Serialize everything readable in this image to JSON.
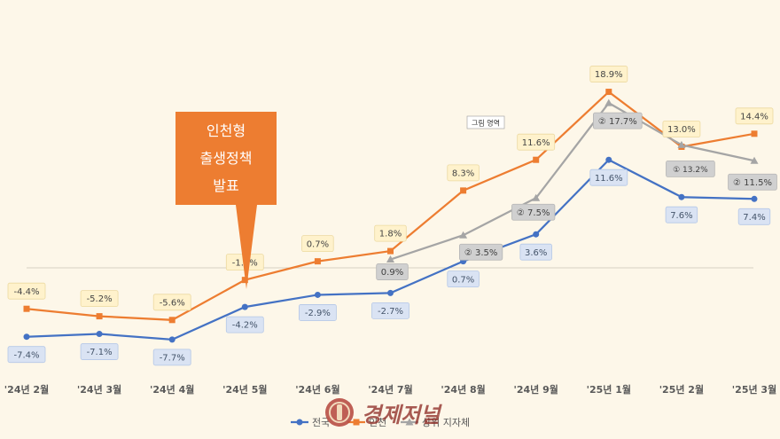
{
  "chart_data": {
    "type": "line",
    "categories": [
      "'24년 2월",
      "'24년 3월",
      "'24년 4월",
      "'24년 5월",
      "'24년 6월",
      "'24년 7월",
      "'24년 8월",
      "'24년 9월",
      "'25년 1월",
      "'25년 2월",
      "'25년 3월"
    ],
    "series": [
      {
        "name": "전국",
        "color": "#4472c4",
        "marker": "circle",
        "values": [
          -7.4,
          -7.1,
          -7.7,
          -4.2,
          -2.9,
          -2.7,
          0.7,
          3.6,
          11.6,
          7.6,
          7.4
        ],
        "labels": [
          "-7.4%",
          "-7.1%",
          "-7.7%",
          "-4.2%",
          "-2.9%",
          "-2.7%",
          "0.7%",
          "3.6%",
          "11.6%",
          "7.6%",
          "7.4%"
        ]
      },
      {
        "name": "인천",
        "color": "#ed7d31",
        "marker": "square",
        "values": [
          -4.4,
          -5.2,
          -5.6,
          -1.3,
          0.7,
          1.8,
          8.3,
          11.6,
          18.9,
          13.0,
          14.4
        ],
        "labels": [
          "-4.4%",
          "-5.2%",
          "-5.6%",
          "-1.3%",
          "0.7%",
          "1.8%",
          "8.3%",
          "11.6%",
          "18.9%",
          "13.0%",
          "14.4%"
        ]
      },
      {
        "name": "상위 지자체",
        "color": "#a5a5a5",
        "marker": "triangle",
        "values": [
          null,
          null,
          null,
          null,
          null,
          0.9,
          3.5,
          7.5,
          17.7,
          13.2,
          11.5
        ],
        "labels": [
          "",
          "",
          "",
          "",
          "",
          "0.9%",
          "② 3.5%",
          "② 7.5%",
          "② 17.7%",
          "① 13.2%",
          "② 11.5%"
        ]
      }
    ],
    "ylim": [
      -10,
      22
    ],
    "grid": false,
    "legend": "bottom",
    "annotation": {
      "lines": [
        "인천형",
        "출생정책",
        "발표"
      ]
    },
    "tooltip": "그림 영역",
    "watermark": "경제저널"
  }
}
